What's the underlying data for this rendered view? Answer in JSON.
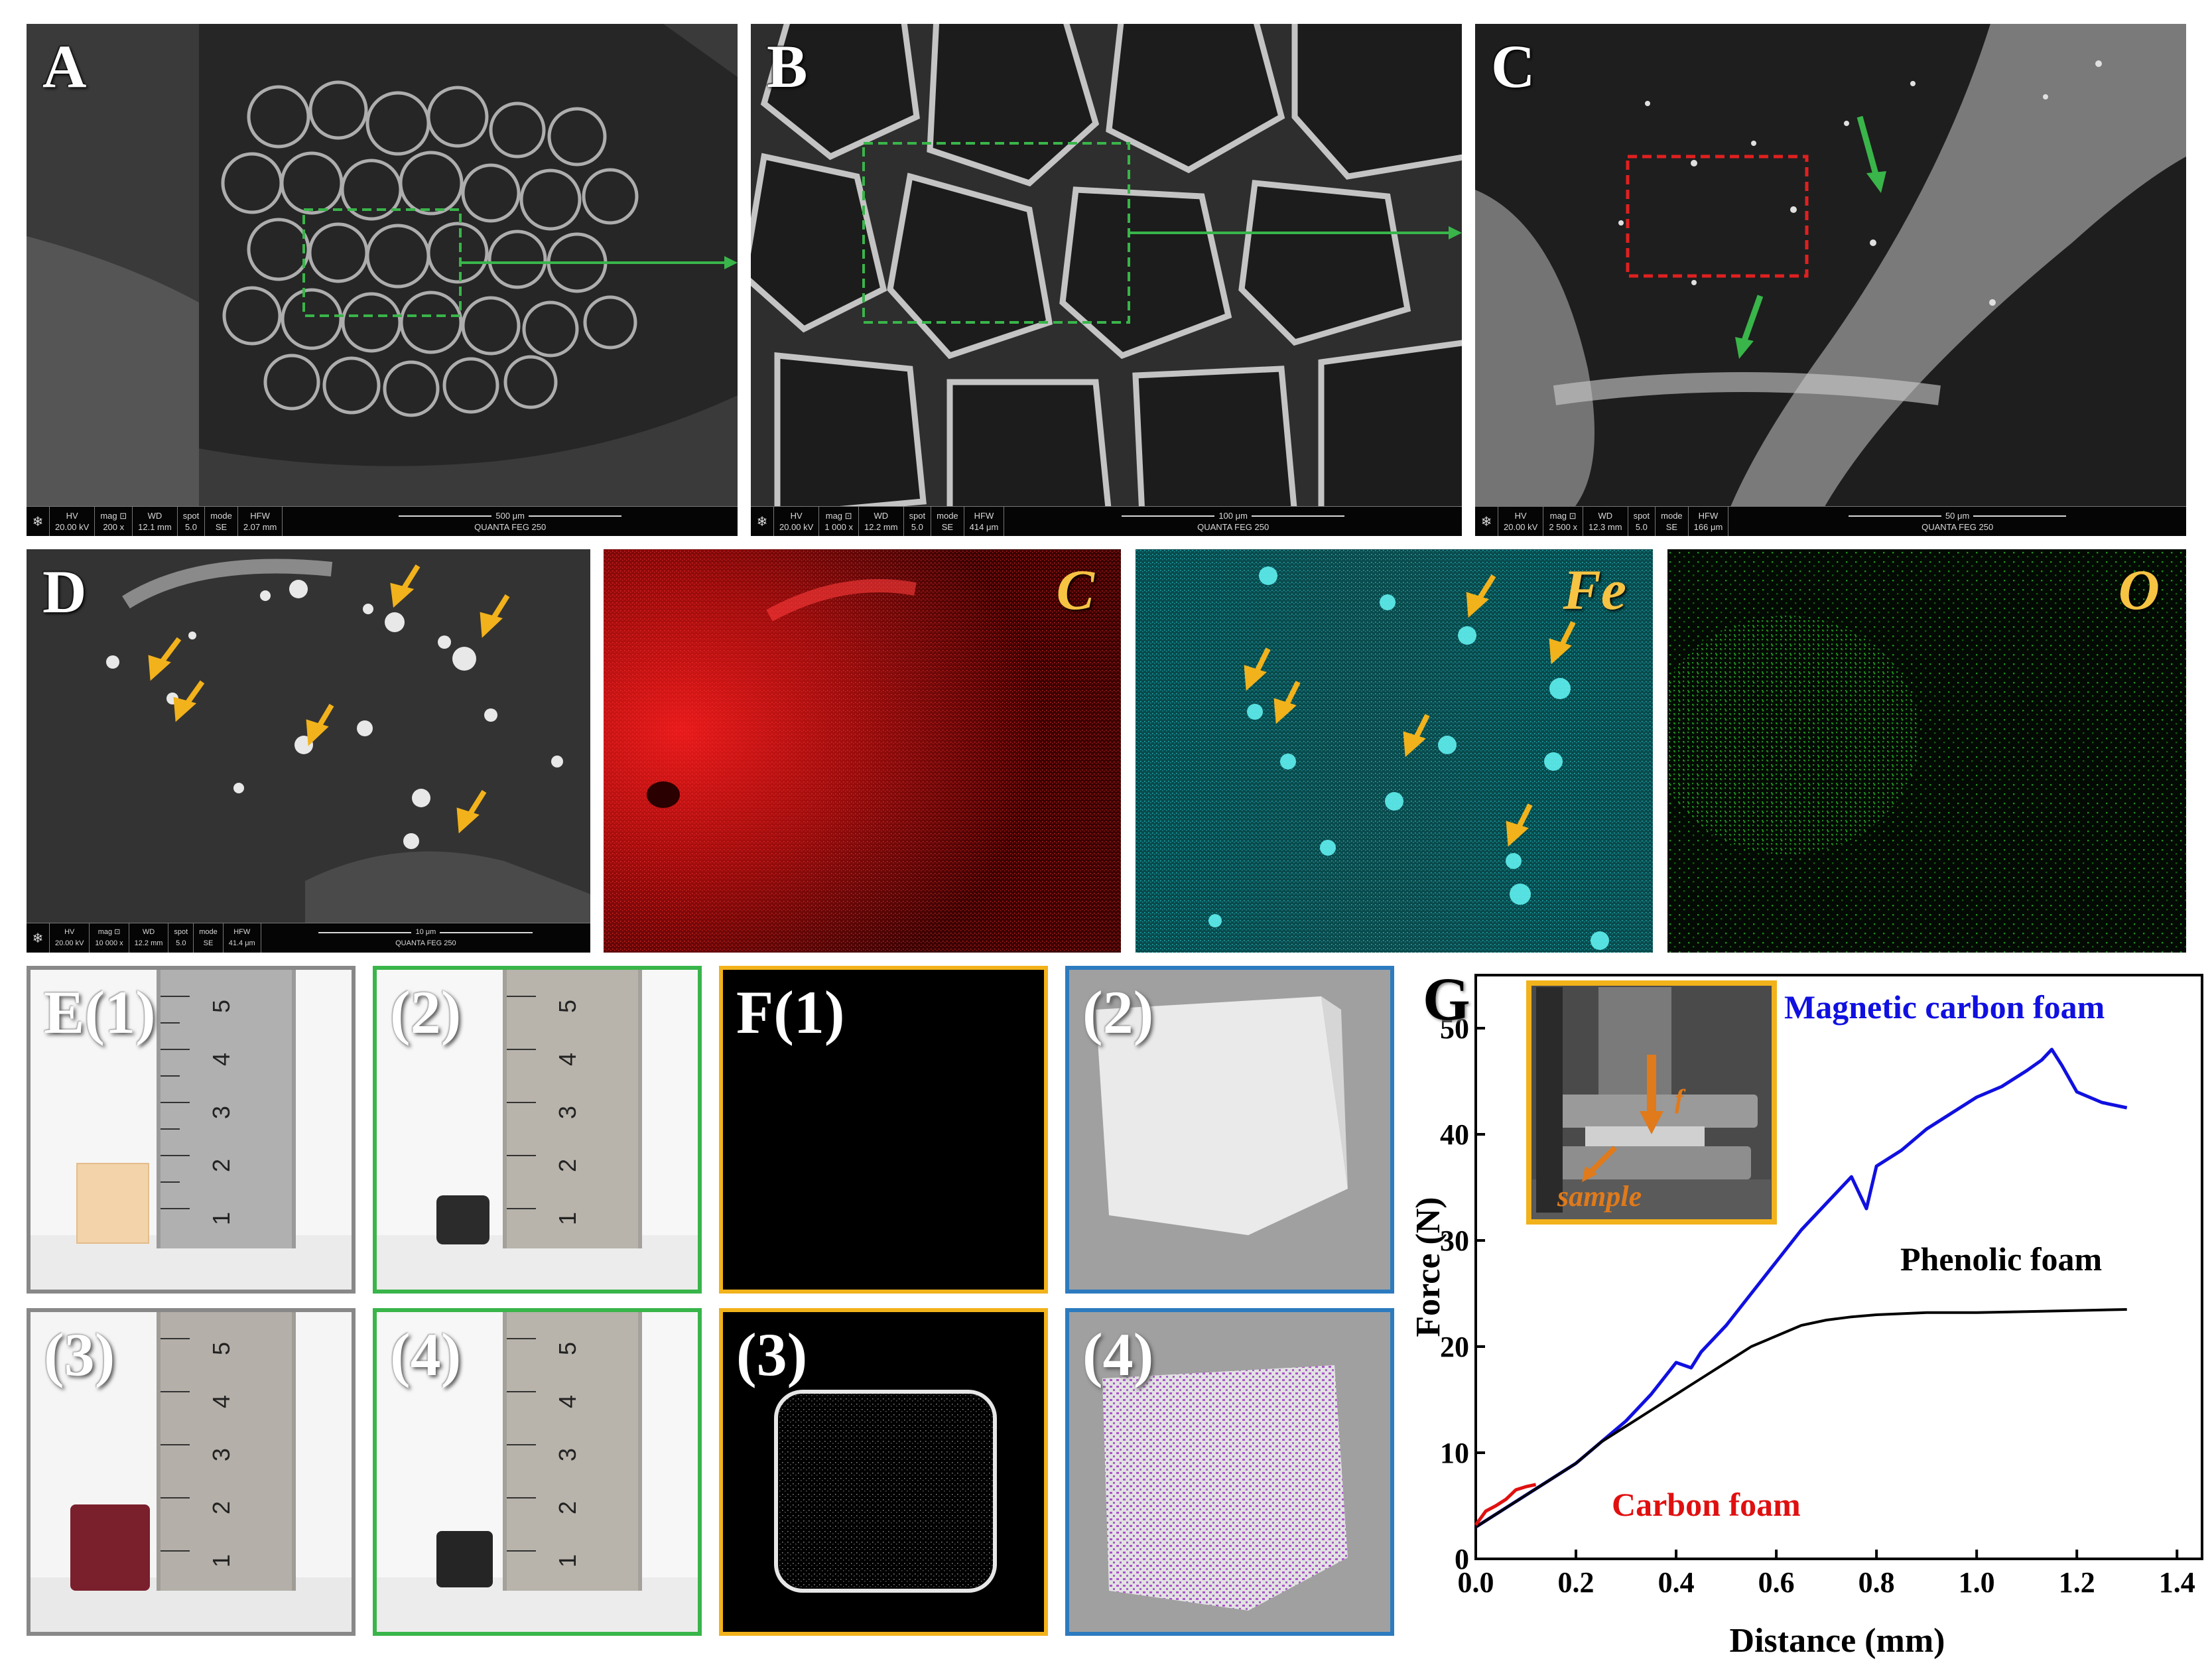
{
  "panels": {
    "A": "A",
    "B": "B",
    "C": "C",
    "D": "D",
    "E1": "E(1)",
    "E2": "(2)",
    "E3": "(3)",
    "E4": "(4)",
    "F1": "F(1)",
    "F2": "(2)",
    "F3": "(3)",
    "F4": "(4)",
    "G": "G"
  },
  "element_labels": {
    "c": "C",
    "fe": "Fe",
    "o": "O"
  },
  "sem_bars": {
    "A": {
      "hv": "20.00 kV",
      "mag": "200 x",
      "wd": "12.1 mm",
      "spot": "5.0",
      "mode": "SE",
      "hfw": "2.07 mm",
      "scale": "500 μm",
      "instrument": "QUANTA FEG 250"
    },
    "B": {
      "hv": "20.00 kV",
      "mag": "1 000 x",
      "wd": "12.2 mm",
      "spot": "5.0",
      "mode": "SE",
      "hfw": "414 μm",
      "scale": "100 μm",
      "instrument": "QUANTA FEG 250"
    },
    "C": {
      "hv": "20.00 kV",
      "mag": "2 500 x",
      "wd": "12.3 mm",
      "spot": "5.0",
      "mode": "SE",
      "hfw": "166 μm",
      "scale": "50 μm",
      "instrument": "QUANTA FEG 250"
    },
    "D": {
      "hv": "20.00 kV",
      "mag": "10 000 x",
      "wd": "12.2 mm",
      "spot": "5.0",
      "mode": "SE",
      "hfw": "41.4 μm",
      "scale": "10 μm",
      "instrument": "QUANTA FEG 250"
    }
  },
  "sem_headers": {
    "hv": "HV",
    "mag": "mag ⊡",
    "wd": "WD",
    "spot": "spot",
    "mode": "mode",
    "hfw": "HFW"
  },
  "ruler_numbers": [
    "1",
    "2",
    "3",
    "4",
    "5"
  ],
  "colors": {
    "magnetic": "#1010e0",
    "phenolic": "#000000",
    "carbon": "#e01010",
    "c_map": "#e01010",
    "fe_map": "#22c8d0",
    "o_map": "#22b022",
    "green_box": "#39b54a",
    "gold_box": "#f2b21b",
    "blue_box": "#2c7bbf",
    "red_box": "#e02020"
  },
  "chart_data": {
    "type": "line",
    "xlabel": "Distance (mm)",
    "ylabel": "Force (N)",
    "xlim": [
      0.0,
      1.45
    ],
    "ylim": [
      0,
      55
    ],
    "xticks": [
      "0.0",
      "0.2",
      "0.4",
      "0.6",
      "0.8",
      "1.0",
      "1.2",
      "1.4"
    ],
    "yticks": [
      "0",
      "10",
      "20",
      "30",
      "40",
      "50"
    ],
    "annotations": {
      "inset_label": "sample"
    },
    "series": [
      {
        "name": "Magnetic carbon foam",
        "x": [
          0.0,
          0.05,
          0.1,
          0.15,
          0.2,
          0.25,
          0.3,
          0.35,
          0.4,
          0.43,
          0.45,
          0.5,
          0.55,
          0.6,
          0.65,
          0.7,
          0.75,
          0.78,
          0.8,
          0.85,
          0.9,
          0.95,
          1.0,
          1.05,
          1.1,
          1.13,
          1.15,
          1.17,
          1.2,
          1.25,
          1.3
        ],
        "y": [
          3,
          4.5,
          6,
          7.5,
          9,
          11,
          13,
          15.5,
          18.5,
          18,
          19.5,
          22,
          25,
          28,
          31,
          33.5,
          36,
          33,
          37,
          38.5,
          40.5,
          42,
          43.5,
          44.5,
          46,
          47,
          48,
          46.5,
          44,
          43,
          42.5
        ]
      },
      {
        "name": "Phenolic foam",
        "x": [
          0.0,
          0.05,
          0.1,
          0.15,
          0.2,
          0.25,
          0.3,
          0.35,
          0.4,
          0.45,
          0.5,
          0.55,
          0.6,
          0.65,
          0.7,
          0.75,
          0.8,
          0.85,
          0.9,
          1.0,
          1.1,
          1.2,
          1.3
        ],
        "y": [
          3,
          4.5,
          6,
          7.5,
          9,
          11,
          12.5,
          14,
          15.5,
          17,
          18.5,
          20,
          21,
          22,
          22.5,
          22.8,
          23,
          23.1,
          23.2,
          23.2,
          23.3,
          23.4,
          23.5
        ]
      },
      {
        "name": "Carbon foam",
        "x": [
          0.0,
          0.02,
          0.04,
          0.06,
          0.08,
          0.1,
          0.12
        ],
        "y": [
          3.2,
          4.5,
          5.0,
          5.6,
          6.5,
          6.8,
          7.0
        ]
      }
    ]
  }
}
